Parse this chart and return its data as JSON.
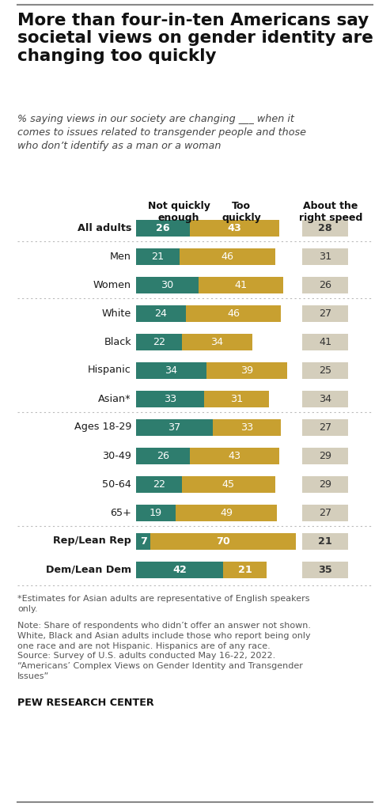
{
  "title": "More than four-in-ten Americans say\nsocietal views on gender identity are\nchanging too quickly",
  "subtitle": "% saying views in our society are changing ___ when it\ncomes to issues related to transgender people and those\nwho don’t identify as a man or a woman",
  "categories": [
    "All adults",
    "Men",
    "Women",
    "White",
    "Black",
    "Hispanic",
    "Asian*",
    "Ages 18-29",
    "30-49",
    "50-64",
    "65+",
    "Rep/Lean Rep",
    "Dem/Lean Dem"
  ],
  "not_quickly_enough": [
    26,
    21,
    30,
    24,
    22,
    34,
    33,
    37,
    26,
    22,
    19,
    7,
    42
  ],
  "too_quickly": [
    43,
    46,
    41,
    46,
    34,
    39,
    31,
    33,
    43,
    45,
    49,
    70,
    21
  ],
  "about_right": [
    28,
    31,
    26,
    27,
    41,
    25,
    34,
    27,
    29,
    29,
    27,
    21,
    35
  ],
  "col_headers": [
    "Not quickly\nenough",
    "Too\nquickly",
    "About the\nright speed"
  ],
  "color_green": "#2e7d6e",
  "color_gold": "#c8a030",
  "color_beige": "#d4cebc",
  "footnote1": "*Estimates for Asian adults are representative of English speakers\nonly.",
  "footnote2": "Note: Share of respondents who didn’t offer an answer not shown.\nWhite, Black and Asian adults include those who report being only\none race and are not Hispanic. Hispanics are of any race.\nSource: Survey of U.S. adults conducted May 16-22, 2022.\n“Americans’ Complex Views on Gender Identity and Transgender\nIssues”",
  "footnote3": "PEW RESEARCH CENTER",
  "bold_rows": [
    0,
    11,
    12
  ],
  "dotted_before": [
    1,
    3,
    7,
    11
  ],
  "background_color": "#ffffff",
  "top_line_color": "#888888",
  "sep_line_color": "#bbbbbb",
  "label_color": "#1a1a1a",
  "footnote_color": "#555555",
  "bar_text_color_light": "#ffffff",
  "bar_text_color_dark": "#333333"
}
